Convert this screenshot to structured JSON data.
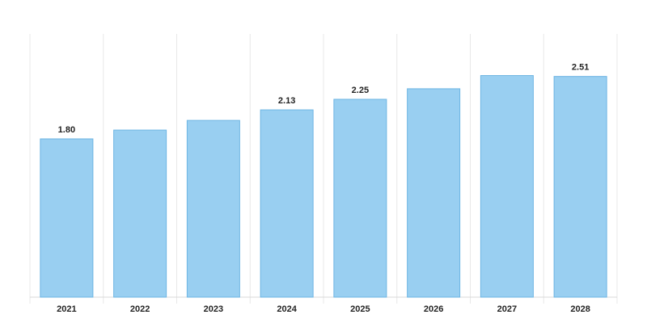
{
  "chart_data": {
    "type": "bar",
    "categories": [
      "2021",
      "2022",
      "2023",
      "2024",
      "2025",
      "2026",
      "2027",
      "2028"
    ],
    "values": [
      1.8,
      1.9,
      2.01,
      2.13,
      2.25,
      2.37,
      2.52,
      2.51
    ],
    "data_labels": [
      "1.80",
      "",
      "",
      "2.13",
      "2.25",
      "",
      "",
      "2.51"
    ],
    "ylim": [
      0,
      3
    ],
    "grid": "vertical",
    "bar_color": "#99cff1",
    "bar_edge_color": "#6db5e3"
  }
}
